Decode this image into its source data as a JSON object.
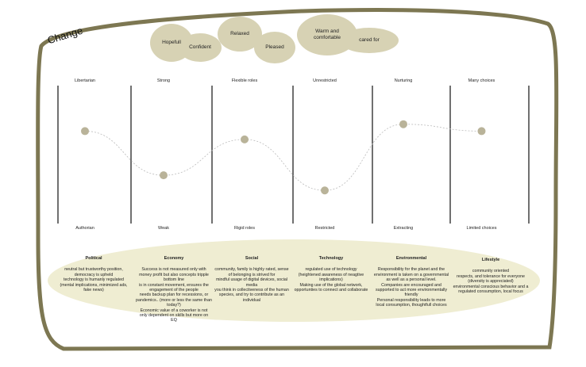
{
  "title": "Change",
  "feelings": [
    "Hopefull",
    "Confident",
    "Relaxed",
    "Pleased",
    "Warm and comfortable",
    "cared for"
  ],
  "scales": [
    {
      "top": "Libertarian",
      "bottom": "Authorian",
      "level": 0.67
    },
    {
      "top": "Strong",
      "bottom": "Weak",
      "level": 0.35
    },
    {
      "top": "Flexible roles",
      "bottom": "Rigid roles",
      "level": 0.61
    },
    {
      "top": "Unrestricted",
      "bottom": "Restricted",
      "level": 0.24
    },
    {
      "top": "Nurturing",
      "bottom": "Extracting",
      "level": 0.72
    },
    {
      "top": "Many choices",
      "bottom": "Limited choices",
      "level": 0.67
    }
  ],
  "categories": [
    {
      "title": "Political",
      "text": "neutral but trustworthy position,\ndemocracy is upheld\ntechnology is humanly regulated\n(mental implications, minimized ads,\nfake news)"
    },
    {
      "title": "Economy",
      "text": "Success is not measured only with\nmoney profit but also concepts tripple\nbottom line\nis in constant movement, ensures the\nengagement of the people\nneeds backup plan for recessions, or\npandemics.. (more or less the same than\ntoday?)\nEconomic value of a coworker is not\nonly dependent on skills but more on\nEQ"
    },
    {
      "title": "Social",
      "text": "community, family is highly rated, sense\nof belonging is strived for\nmindful usage of digital devices, social\nmedia\nyou think in collectiveness of the human\nspecies, and try to contribute as an\nindividual"
    },
    {
      "title": "Technology",
      "text": "regulated use of technology\n(heightened awareness of neagtive\nimplications)\nMaking use of the global network,\nopportunties to connect and collaborate"
    },
    {
      "title": "Environmental",
      "text": "Responsibility for the planet and the\nenvironment is taken on a governmental\nas well as a personal level.\nCompanies are encouraged and\nsupported to act more environmentally\nfriendly\nPersonal responsibility leads to more\nlocal consumption, thoughtfull choices"
    },
    {
      "title": "Lifestyle",
      "text": "community oriented\nrespects, and tolerance for everyone\n(diversity is appreciated)\nenvironmental conscious behavior and a\nregulated consumption, local focus"
    }
  ],
  "colors": {
    "frame": "#7d7752",
    "bubble": "#d7d2b4",
    "panel": "#efedd2",
    "dot": "#b9b399"
  }
}
